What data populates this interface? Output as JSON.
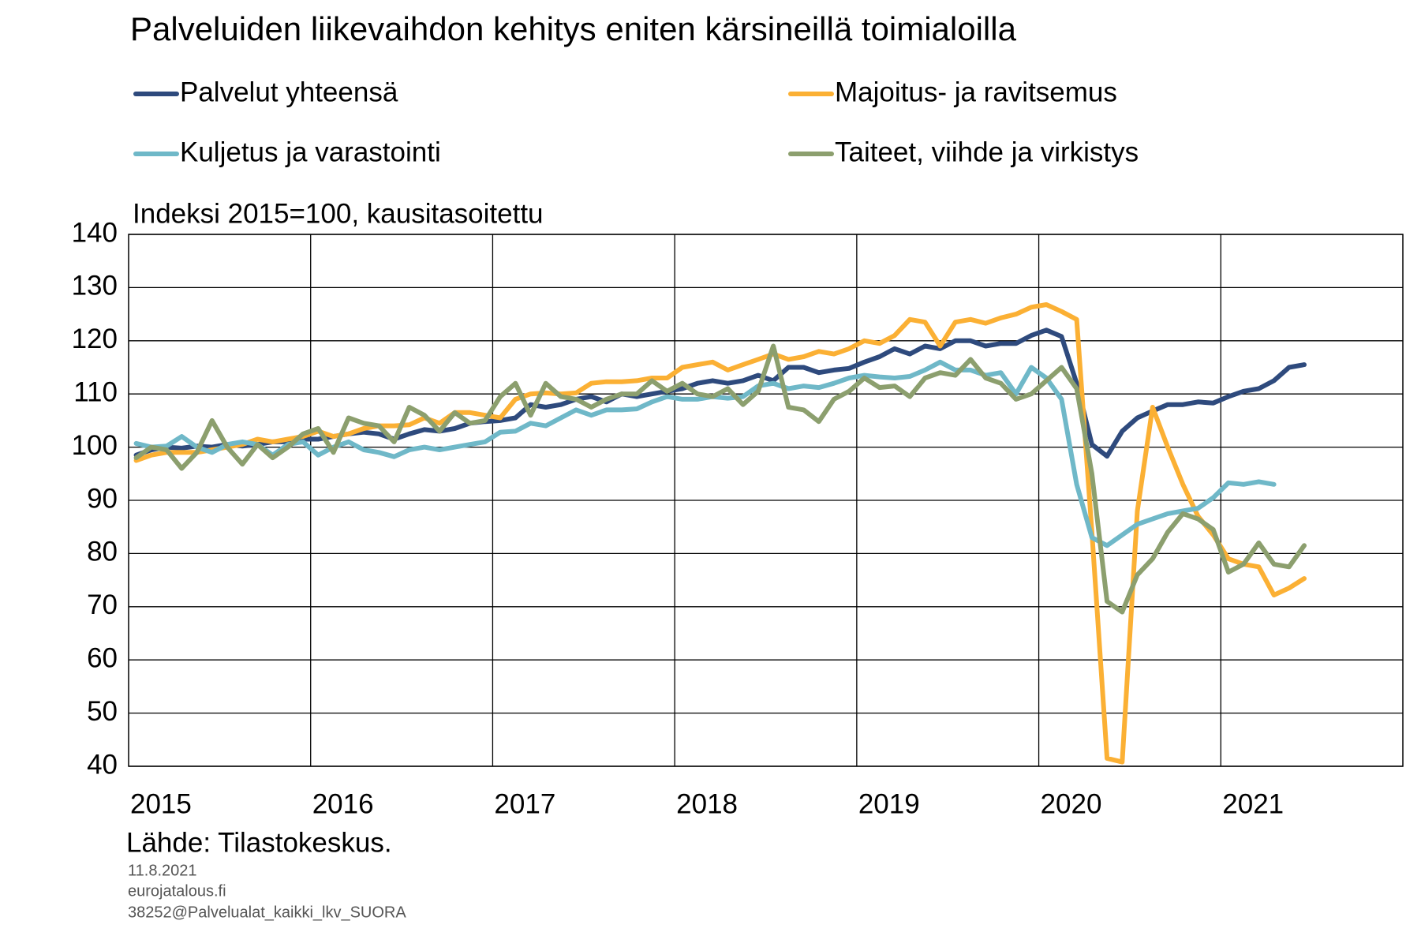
{
  "chart_data": {
    "type": "line",
    "title": "Palveluiden liikevaihdon kehitys eniten kärsineillä toimialoilla",
    "subtitle": "Indeksi 2015=100, kausitasoitettu",
    "source": "Lähde: Tilastokeskus.",
    "notes": [
      "11.8.2021",
      "eurojatalous.fi",
      "38252@Palvelualat_kaikki_lkv_SUORA"
    ],
    "legend": "top",
    "grid": true,
    "categories": [
      "2015",
      null,
      null,
      null,
      null,
      null,
      null,
      null,
      null,
      null,
      null,
      null,
      "2016",
      null,
      null,
      null,
      null,
      null,
      null,
      null,
      null,
      null,
      null,
      null,
      "2017",
      null,
      null,
      null,
      null,
      null,
      null,
      null,
      null,
      null,
      null,
      null,
      "2018",
      null,
      null,
      null,
      null,
      null,
      null,
      null,
      null,
      null,
      null,
      null,
      "2019",
      null,
      null,
      null,
      null,
      null,
      null,
      null,
      null,
      null,
      null,
      null,
      "2020",
      null,
      null,
      null,
      null,
      null,
      null,
      null,
      null,
      null,
      null,
      null,
      "2021",
      null,
      null,
      null,
      null,
      null,
      null,
      null,
      null,
      null,
      null,
      null
    ],
    "ylim": [
      40,
      140
    ],
    "yticks": [
      40,
      50,
      60,
      70,
      80,
      90,
      100,
      110,
      120,
      130,
      140
    ],
    "series": [
      {
        "name": "Palvelut yhteensä",
        "color": "#2e4a7d",
        "values": [
          98.5,
          99.5,
          100,
          99.8,
          100.2,
          100,
          100.5,
          100.2,
          100.5,
          101,
          101,
          101.5,
          101.5,
          102,
          102.5,
          102.8,
          102.5,
          101.5,
          102.5,
          103.3,
          103,
          103.5,
          104.5,
          104.8,
          105,
          105.5,
          108,
          107.5,
          108,
          109,
          109.5,
          108.5,
          110,
          109.5,
          110,
          110.5,
          111,
          112,
          112.5,
          112,
          112.5,
          113.5,
          112.5,
          115,
          115,
          114,
          114.5,
          114.8,
          116,
          117,
          118.5,
          117.5,
          119,
          118.5,
          120,
          120,
          119,
          119.5,
          119.5,
          121,
          122,
          120.8,
          112,
          100.5,
          98.3,
          103,
          105.5,
          106.8,
          108,
          108,
          108.5,
          108.3,
          109.5,
          110.5,
          111,
          112.5,
          115,
          115.5,
          null,
          null,
          null,
          null,
          null,
          null
        ]
      },
      {
        "name": "Majoitus- ja ravitsemus",
        "color": "#fbb034",
        "values": [
          97.5,
          98.5,
          99,
          99,
          99,
          99.5,
          100,
          100.5,
          101.5,
          101,
          101.5,
          102,
          103,
          102,
          102.5,
          103.5,
          104,
          104,
          104.2,
          105.5,
          104.5,
          106.5,
          106.5,
          106,
          105.5,
          109,
          110,
          110.2,
          110,
          110.2,
          112,
          112.3,
          112.3,
          112.5,
          113,
          113,
          115,
          115.5,
          116,
          114.5,
          115.5,
          116.5,
          117.5,
          116.5,
          117,
          118,
          117.5,
          118.5,
          120,
          119.5,
          121,
          124,
          123.5,
          119,
          123.5,
          124,
          123.3,
          124.3,
          125,
          126.3,
          126.8,
          125.5,
          124,
          84,
          41.5,
          40.8,
          88,
          107.5,
          100,
          93,
          87,
          83.5,
          79,
          78,
          77.5,
          72.2,
          73.5,
          75.3,
          null,
          null,
          null,
          null,
          null,
          null
        ]
      },
      {
        "name": "Kuljetus ja varastointi",
        "color": "#6fb8c8",
        "values": [
          100.7,
          100,
          100.2,
          102,
          100,
          99,
          100.5,
          101,
          100.5,
          98.5,
          100.5,
          101,
          98.5,
          100,
          101,
          99.5,
          99,
          98.2,
          99.5,
          100,
          99.5,
          100,
          100.5,
          101,
          102.8,
          103,
          104.5,
          104,
          105.5,
          107,
          106,
          107,
          107,
          107.2,
          108.5,
          109.5,
          109,
          109,
          109.5,
          109.2,
          109.5,
          111.5,
          112,
          111,
          111.5,
          111.2,
          112,
          113,
          113.5,
          113.2,
          113,
          113.3,
          114.5,
          116,
          114.5,
          114.5,
          113.5,
          114,
          110,
          115,
          113,
          109,
          93,
          83,
          81.5,
          83.5,
          85.5,
          86.5,
          87.5,
          88,
          88.5,
          90.5,
          93.3,
          93,
          93.5,
          93,
          null,
          null,
          null,
          null,
          null,
          null,
          null,
          null
        ]
      },
      {
        "name": "Taiteet, viihde ja virkistys",
        "color": "#8c9f6e",
        "values": [
          98,
          100,
          99.5,
          96,
          99,
          105,
          100,
          96.8,
          100.5,
          98,
          100,
          102.5,
          103.5,
          99,
          105.5,
          104.5,
          104,
          101,
          107.5,
          106,
          103,
          106.5,
          104.5,
          105,
          109.5,
          112,
          106,
          112,
          109.5,
          109,
          107.5,
          109,
          110,
          110,
          112.5,
          110.5,
          112,
          110,
          109.5,
          111,
          108,
          110.5,
          119,
          107.5,
          107,
          104.8,
          109,
          110.5,
          113,
          111.2,
          111.5,
          109.5,
          113,
          114,
          113.5,
          116.5,
          113,
          112,
          109,
          110,
          112.5,
          115,
          111,
          95,
          71,
          69,
          76,
          79,
          84,
          87.5,
          86.5,
          84.5,
          76.5,
          78,
          82,
          78,
          77.5,
          81.5,
          null,
          null,
          null,
          null,
          null,
          null
        ]
      }
    ]
  }
}
